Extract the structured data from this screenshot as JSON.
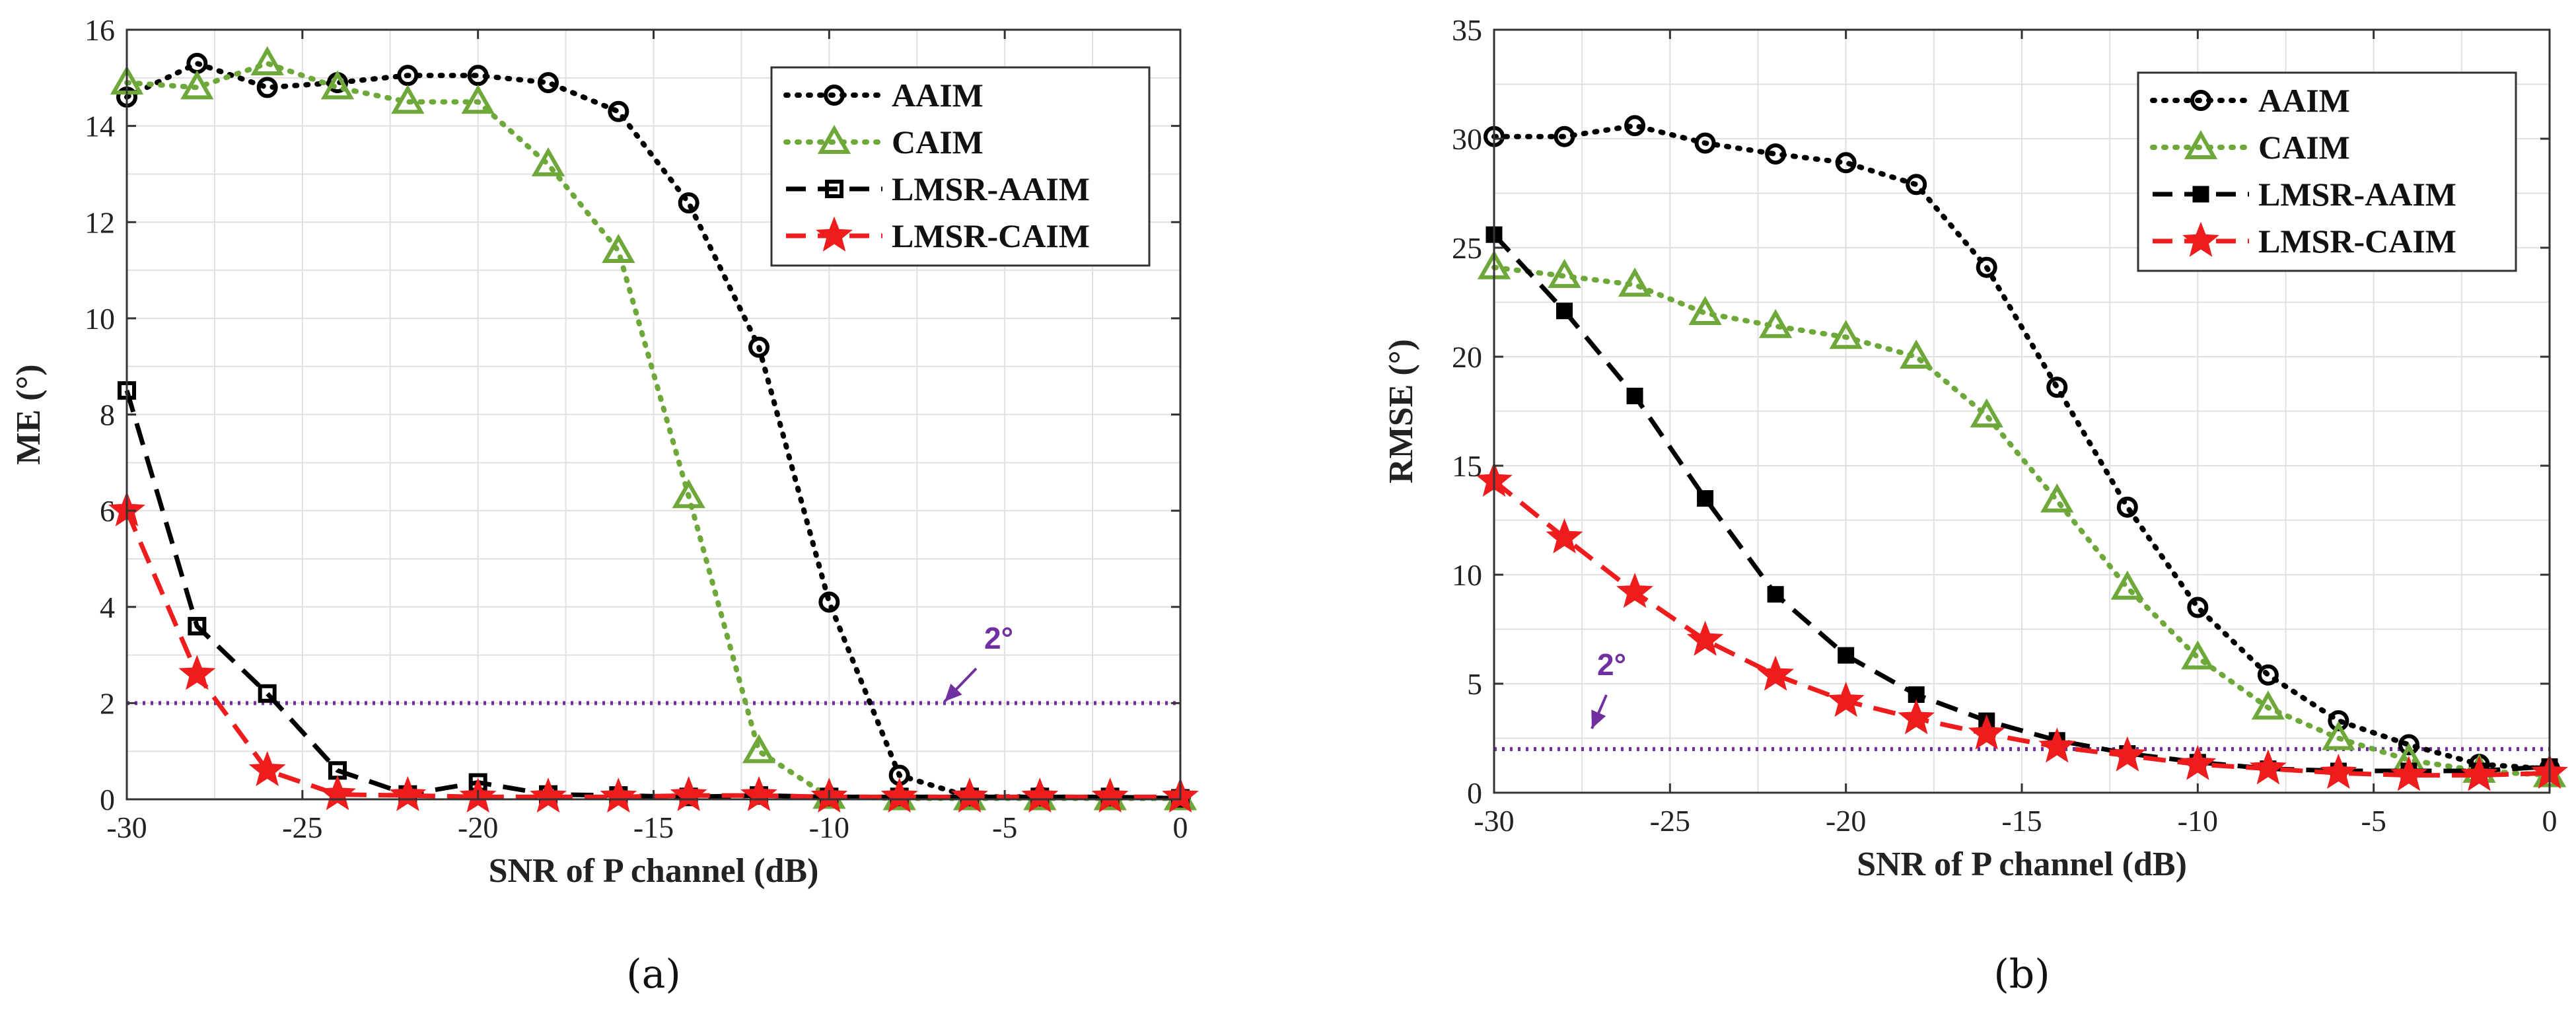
{
  "colors": {
    "AAIM": "#000000",
    "CAIM": "#6fa83a",
    "LMSR-AAIM": "#000000",
    "LMSR-CAIM": "#ee1c1c",
    "threshold": "#7030a0",
    "grid": "#e0e0e0"
  },
  "chart_data": [
    {
      "type": "line",
      "caption": "(a)",
      "xlabel": "SNR of P channel (dB)",
      "ylabel": "ME (°)",
      "xlim": [
        -30,
        0
      ],
      "ylim": [
        0,
        16
      ],
      "xticks": [
        -30,
        -25,
        -20,
        -15,
        -10,
        -5,
        0
      ],
      "yticks": [
        0,
        2,
        4,
        6,
        8,
        10,
        12,
        14,
        16
      ],
      "grid": true,
      "legend_position": "top-right",
      "x": [
        -30,
        -28,
        -26,
        -24,
        -22,
        -20,
        -18,
        -16,
        -14,
        -12,
        -10,
        -8,
        -6,
        -4,
        -2,
        0
      ],
      "series": [
        {
          "name": "AAIM",
          "marker": "circle",
          "line": "dotted",
          "values": [
            14.6,
            15.3,
            14.8,
            14.9,
            15.05,
            15.05,
            14.9,
            14.3,
            12.4,
            9.4,
            4.1,
            0.5,
            0.05,
            0.05,
            0.02,
            0.02
          ]
        },
        {
          "name": "CAIM",
          "marker": "triangle",
          "line": "dotted",
          "values": [
            14.9,
            14.8,
            15.3,
            14.8,
            14.5,
            14.5,
            13.2,
            11.4,
            6.3,
            1.0,
            0.05,
            0.02,
            0.02,
            0.02,
            0.02,
            0.02
          ]
        },
        {
          "name": "LMSR-AAIM",
          "marker": "square",
          "line": "dashed",
          "values": [
            8.5,
            3.6,
            2.2,
            0.6,
            0.1,
            0.35,
            0.1,
            0.08,
            0.05,
            0.08,
            0.05,
            0.05,
            0.05,
            0.05,
            0.05,
            0.02
          ]
        },
        {
          "name": "LMSR-CAIM",
          "marker": "star",
          "line": "dashed",
          "values": [
            6.0,
            2.6,
            0.6,
            0.1,
            0.08,
            0.05,
            0.05,
            0.05,
            0.08,
            0.08,
            0.05,
            0.05,
            0.05,
            0.05,
            0.05,
            0.05
          ]
        }
      ],
      "threshold": {
        "value": 2,
        "label": "2°"
      }
    },
    {
      "type": "line",
      "caption": "(b)",
      "xlabel": "SNR of P channel (dB)",
      "ylabel": "RMSE (°)",
      "xlim": [
        -30,
        0
      ],
      "ylim": [
        0,
        35
      ],
      "xticks": [
        -30,
        -25,
        -20,
        -15,
        -10,
        -5,
        0
      ],
      "yticks": [
        0,
        5,
        10,
        15,
        20,
        25,
        30,
        35
      ],
      "grid": true,
      "legend_position": "top-right",
      "x": [
        -30,
        -28,
        -26,
        -24,
        -22,
        -20,
        -18,
        -16,
        -14,
        -12,
        -10,
        -8,
        -6,
        -4,
        -2,
        0
      ],
      "series": [
        {
          "name": "AAIM",
          "marker": "circle",
          "line": "dotted",
          "values": [
            30.1,
            30.1,
            30.6,
            29.8,
            29.3,
            28.9,
            27.9,
            24.1,
            18.6,
            13.1,
            8.5,
            5.4,
            3.3,
            2.2,
            1.3,
            1.1
          ]
        },
        {
          "name": "CAIM",
          "marker": "triangle",
          "line": "dotted",
          "values": [
            24.1,
            23.7,
            23.3,
            22.0,
            21.4,
            20.9,
            20.0,
            17.3,
            13.4,
            9.4,
            6.2,
            3.9,
            2.5,
            1.5,
            1.0,
            0.8
          ]
        },
        {
          "name": "LMSR-AAIM",
          "marker": "square-filled",
          "line": "dashed",
          "values": [
            25.6,
            22.1,
            18.2,
            13.5,
            9.1,
            6.3,
            4.5,
            3.3,
            2.4,
            1.8,
            1.4,
            1.1,
            1.0,
            1.0,
            1.0,
            1.2
          ]
        },
        {
          "name": "LMSR-CAIM",
          "marker": "star",
          "line": "dashed",
          "values": [
            14.3,
            11.7,
            9.2,
            7.0,
            5.4,
            4.2,
            3.4,
            2.7,
            2.1,
            1.7,
            1.3,
            1.1,
            0.9,
            0.8,
            0.8,
            0.9
          ]
        }
      ],
      "threshold": {
        "value": 2,
        "label": "2°"
      }
    }
  ]
}
